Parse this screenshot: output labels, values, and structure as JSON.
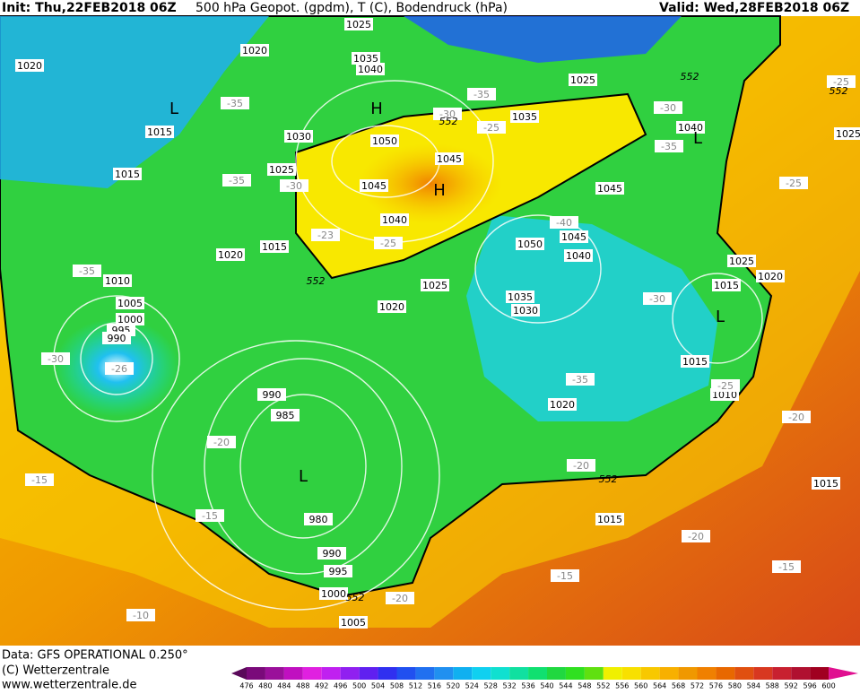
{
  "header": {
    "init": "Init: Thu,22FEB2018 06Z",
    "title": "500 hPa Geopot. (gpdm), T (C), Bodendruck (hPa)",
    "valid": "Valid: Wed,28FEB2018 06Z"
  },
  "footer": {
    "data": "Data: GFS OPERATIONAL 0.250°",
    "copyright": "(C) Wetterzentrale",
    "url": "www.wetterzentrale.de"
  },
  "map": {
    "pressure_labels": [
      "1025",
      "1020",
      "1020",
      "1035",
      "1040",
      "1025",
      "1015",
      "1030",
      "1035",
      "1040",
      "1050",
      "1045",
      "1025",
      "1015",
      "1045",
      "1045",
      "1040",
      "1045",
      "1050",
      "1040",
      "1015",
      "1020",
      "1025",
      "1020",
      "1010",
      "1025",
      "1015",
      "1005",
      "1035",
      "1020",
      "1030",
      "1000",
      "995",
      "990",
      "1015",
      "1010",
      "1020",
      "990",
      "985",
      "980",
      "990",
      "995",
      "1000",
      "1005",
      "1015",
      "1015",
      "1025"
    ],
    "temperature_labels": [
      "-35",
      "-35",
      "-30",
      "-25",
      "-30",
      "-35",
      "-35",
      "-30",
      "-25",
      "-25",
      "-23",
      "-25",
      "-40",
      "-35",
      "-30",
      "-30",
      "-26",
      "-35",
      "-25",
      "-20",
      "-20",
      "-15",
      "-15",
      "-20",
      "-20",
      "-15",
      "-15",
      "-20",
      "-10"
    ],
    "geopotential_labels": [
      "552",
      "552",
      "552",
      "552",
      "552",
      "552"
    ],
    "centers": [
      "L",
      "H",
      "H",
      "L",
      "L",
      "L"
    ]
  },
  "colorbar": {
    "labels": [
      476,
      480,
      484,
      488,
      492,
      496,
      500,
      504,
      508,
      512,
      516,
      520,
      524,
      528,
      532,
      536,
      540,
      544,
      548,
      552,
      556,
      560,
      564,
      568,
      572,
      576,
      580,
      584,
      588,
      592,
      596,
      600
    ],
    "colors": [
      "#5a0a5a",
      "#7a0a7a",
      "#9a109a",
      "#c010c0",
      "#e020e0",
      "#c020f0",
      "#9020f0",
      "#6020f0",
      "#3030f0",
      "#2050f0",
      "#2070f0",
      "#2090f0",
      "#10b0f0",
      "#10d0f0",
      "#10e0d0",
      "#10e0a0",
      "#10e070",
      "#20d840",
      "#30e020",
      "#60e010",
      "#f0f000",
      "#f8e000",
      "#f8c800",
      "#f8b000",
      "#f09800",
      "#f08000",
      "#e86800",
      "#e05010",
      "#d83820",
      "#c82030",
      "#b01030",
      "#a00020",
      "#e01090"
    ]
  }
}
